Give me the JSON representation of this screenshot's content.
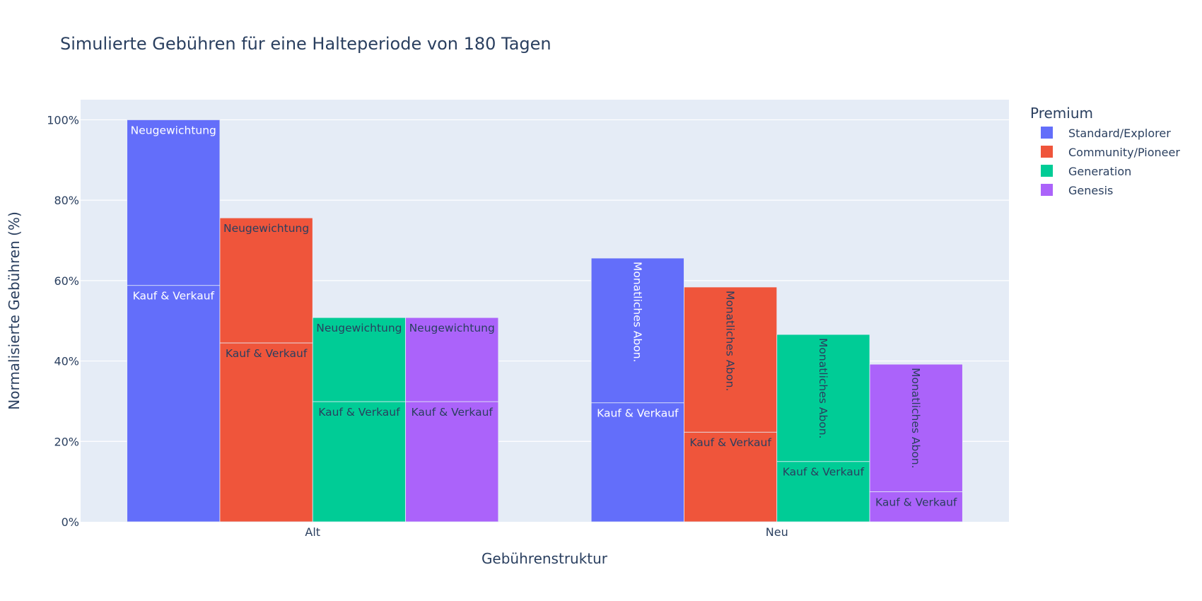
{
  "chart_data": {
    "type": "bar",
    "barmode": "grouped-stacked",
    "title": "Simulierte Gebühren für eine Halteperiode von 180 Tagen",
    "xlabel": "Gebührenstruktur",
    "ylabel": "Normalisierte Gebühren (%)",
    "ylim": [
      0,
      105
    ],
    "y_ticks": [
      0,
      20,
      40,
      60,
      80,
      100
    ],
    "y_tick_suffix": "%",
    "grid": true,
    "legend_title": "Premium",
    "legend_position": "top-right",
    "categories": [
      "Alt",
      "Neu"
    ],
    "groups": [
      {
        "name": "Standard/Explorer",
        "color": "#636efa",
        "text_color": "#ffffff",
        "segments": [
          {
            "category": "Alt",
            "label": "Kauf & Verkauf",
            "value": 58.8
          },
          {
            "category": "Alt",
            "label": "Neugewichtung",
            "value": 41.2
          },
          {
            "category": "Neu",
            "label": "Kauf & Verkauf",
            "value": 29.6
          },
          {
            "category": "Neu",
            "label": "Monatliches Abon.",
            "value": 36.0
          }
        ]
      },
      {
        "name": "Community/Pioneer",
        "color": "#ef553b",
        "text_color": "#2a3f5f",
        "segments": [
          {
            "category": "Alt",
            "label": "Kauf & Verkauf",
            "value": 44.5
          },
          {
            "category": "Alt",
            "label": "Neugewichtung",
            "value": 31.1
          },
          {
            "category": "Neu",
            "label": "Kauf & Verkauf",
            "value": 22.3
          },
          {
            "category": "Neu",
            "label": "Monatliches Abon.",
            "value": 36.1
          }
        ]
      },
      {
        "name": "Generation",
        "color": "#00cc96",
        "text_color": "#2a3f5f",
        "segments": [
          {
            "category": "Alt",
            "label": "Kauf & Verkauf",
            "value": 29.9
          },
          {
            "category": "Alt",
            "label": "Neugewichtung",
            "value": 20.9
          },
          {
            "category": "Neu",
            "label": "Kauf & Verkauf",
            "value": 15.0
          },
          {
            "category": "Neu",
            "label": "Monatliches Abon.",
            "value": 31.6
          }
        ]
      },
      {
        "name": "Genesis",
        "color": "#ab63fa",
        "text_color": "#2a3f5f",
        "segments": [
          {
            "category": "Alt",
            "label": "Kauf & Verkauf",
            "value": 29.9
          },
          {
            "category": "Alt",
            "label": "Neugewichtung",
            "value": 20.9
          },
          {
            "category": "Neu",
            "label": "Kauf & Verkauf",
            "value": 7.5
          },
          {
            "category": "Neu",
            "label": "Monatliches Abon.",
            "value": 31.7
          }
        ]
      }
    ]
  }
}
